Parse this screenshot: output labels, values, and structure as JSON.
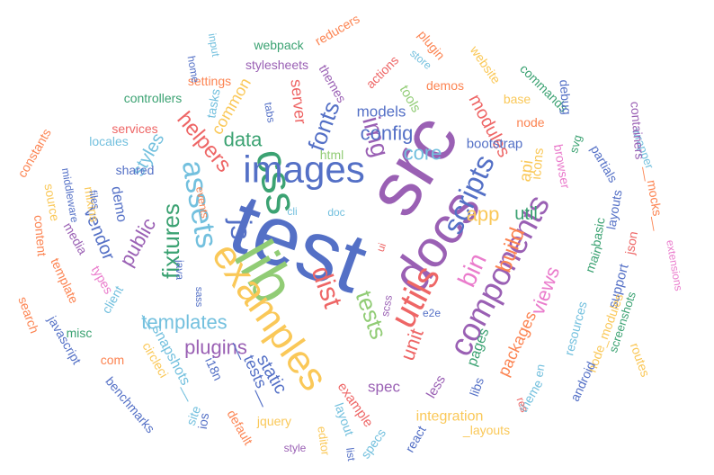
{
  "palette": [
    "#5470c6",
    "#91cc75",
    "#fac858",
    "#ee6666",
    "#73c0de",
    "#3ba272",
    "#fc8452",
    "#9a60b4",
    "#ea7ccc"
  ],
  "words": [
    {
      "text": "test",
      "color": "#5470c6"
    },
    {
      "text": "src",
      "color": "#9a60b4"
    },
    {
      "text": "lib",
      "color": "#91cc75"
    },
    {
      "text": "docs",
      "color": "#9a60b4"
    },
    {
      "text": "examples",
      "color": "#fac858"
    },
    {
      "text": "css",
      "color": "#3ba272"
    },
    {
      "text": "images",
      "color": "#5470c6"
    },
    {
      "text": "utils",
      "color": "#ee6666"
    },
    {
      "text": "components",
      "color": "#9a60b4"
    },
    {
      "text": "assets",
      "color": "#73c0de"
    },
    {
      "text": "js",
      "color": "#5470c6"
    },
    {
      "text": "scripts",
      "color": "#5470c6"
    },
    {
      "text": "dist",
      "color": "#ee6666"
    },
    {
      "text": "bin",
      "color": "#ea7ccc"
    },
    {
      "text": "img",
      "color": "#9a60b4"
    },
    {
      "text": "fixtures",
      "color": "#3ba272"
    },
    {
      "text": "templates",
      "color": "#73c0de"
    },
    {
      "text": "tests",
      "color": "#91cc75"
    },
    {
      "text": "fonts",
      "color": "#5470c6"
    },
    {
      "text": "build",
      "color": "#fc8452"
    },
    {
      "text": "helpers",
      "color": "#ee6666"
    },
    {
      "text": "app",
      "color": "#fac858"
    },
    {
      "text": "public",
      "color": "#9a60b4"
    },
    {
      "text": "plugins",
      "color": "#9a60b4"
    },
    {
      "text": "views",
      "color": "#ea7ccc"
    },
    {
      "text": "unit",
      "color": "#ee6666"
    },
    {
      "text": "config",
      "color": "#5470c6"
    },
    {
      "text": "core",
      "color": "#73c0de"
    },
    {
      "text": "data",
      "color": "#3ba272"
    },
    {
      "text": "static",
      "color": "#5470c6"
    },
    {
      "text": "vendor",
      "color": "#5470c6"
    },
    {
      "text": "util",
      "color": "#3ba272"
    },
    {
      "text": "api",
      "color": "#fac858"
    },
    {
      "text": "styles",
      "color": "#73c0de"
    },
    {
      "text": "modules",
      "color": "#ee6666"
    },
    {
      "text": "__tests__",
      "color": "#5470c6"
    },
    {
      "text": "__snapshots__",
      "color": "#73c0de"
    },
    {
      "text": "integration",
      "color": "#fac858"
    },
    {
      "text": "pages",
      "color": "#3ba272"
    },
    {
      "text": "packages",
      "color": "#fc8452"
    },
    {
      "text": "common",
      "color": "#fac858"
    },
    {
      "text": "server",
      "color": "#ee6666"
    },
    {
      "text": "models",
      "color": "#5470c6"
    },
    {
      "text": "spec",
      "color": "#9a60b4"
    },
    {
      "text": "example",
      "color": "#ee6666"
    },
    {
      "text": "icons",
      "color": "#fac858"
    },
    {
      "text": "demo",
      "color": "#5470c6"
    },
    {
      "text": "less",
      "color": "#9a60b4"
    },
    {
      "text": "support",
      "color": "#5470c6"
    },
    {
      "text": "bootstrap",
      "color": "#5470c6"
    },
    {
      "text": "tools",
      "color": "#91cc75"
    },
    {
      "text": "html",
      "color": "#91cc75"
    },
    {
      "text": "main",
      "color": "#3ba272"
    },
    {
      "text": "resources",
      "color": "#73c0de"
    },
    {
      "text": "node_modules",
      "color": "#fac858"
    },
    {
      "text": "services",
      "color": "#ee6666"
    },
    {
      "text": "themes",
      "color": "#9a60b4"
    },
    {
      "text": "client",
      "color": "#73c0de"
    },
    {
      "text": "types",
      "color": "#ea7ccc"
    },
    {
      "text": "jquery",
      "color": "#fac858"
    },
    {
      "text": "react",
      "color": "#5470c6"
    },
    {
      "text": "specs",
      "color": "#73c0de"
    },
    {
      "text": "layout",
      "color": "#73c0de"
    },
    {
      "text": "libs",
      "color": "#5470c6"
    },
    {
      "text": "en",
      "color": "#73c0de"
    },
    {
      "text": "theme",
      "color": "#73c0de"
    },
    {
      "text": "shared",
      "color": "#5470c6"
    },
    {
      "text": "browser",
      "color": "#ea7ccc"
    },
    {
      "text": "screenshots",
      "color": "#3ba272"
    },
    {
      "text": "node",
      "color": "#fc8452"
    },
    {
      "text": "commands",
      "color": "#3ba272"
    },
    {
      "text": "mixins",
      "color": "#fac858"
    },
    {
      "text": "files",
      "color": "#5470c6"
    },
    {
      "text": "middleware",
      "color": "#5470c6"
    },
    {
      "text": "source",
      "color": "#fac858"
    },
    {
      "text": "locales",
      "color": "#73c0de"
    },
    {
      "text": "controllers",
      "color": "#3ba272"
    },
    {
      "text": "settings",
      "color": "#fc8452"
    },
    {
      "text": "stylesheets",
      "color": "#9a60b4"
    },
    {
      "text": "webpack",
      "color": "#3ba272"
    },
    {
      "text": "reducers",
      "color": "#fc8452"
    },
    {
      "text": "plugin",
      "color": "#fc8452"
    },
    {
      "text": "store",
      "color": "#73c0de"
    },
    {
      "text": "website",
      "color": "#fac858"
    },
    {
      "text": "demos",
      "color": "#fc8452"
    },
    {
      "text": "actions",
      "color": "#ee6666"
    },
    {
      "text": "base",
      "color": "#fac858"
    },
    {
      "text": "tasks",
      "color": "#73c0de"
    },
    {
      "text": "home",
      "color": "#5470c6"
    },
    {
      "text": "input",
      "color": "#73c0de"
    },
    {
      "text": "tabs",
      "color": "#5470c6"
    },
    {
      "text": "events",
      "color": "#fc8452"
    },
    {
      "text": "cli",
      "color": "#73c0de"
    },
    {
      "text": "doc",
      "color": "#73c0de"
    },
    {
      "text": "java",
      "color": "#5470c6"
    },
    {
      "text": "sass",
      "color": "#5470c6"
    },
    {
      "text": "scss",
      "color": "#9a60b4"
    },
    {
      "text": "e2e",
      "color": "#5470c6"
    },
    {
      "text": "ui",
      "color": "#ee6666"
    },
    {
      "text": "misc",
      "color": "#3ba272"
    },
    {
      "text": "com",
      "color": "#fc8452"
    },
    {
      "text": "i18n",
      "color": "#5470c6"
    },
    {
      "text": "ios",
      "color": "#5470c6"
    },
    {
      "text": "circleci",
      "color": "#fac858"
    },
    {
      "text": "site",
      "color": "#73c0de"
    },
    {
      "text": "default",
      "color": "#fc8452"
    },
    {
      "text": "style",
      "color": "#9a60b4"
    },
    {
      "text": "editor",
      "color": "#fac858"
    },
    {
      "text": "list",
      "color": "#5470c6"
    },
    {
      "text": "_layouts",
      "color": "#fac858"
    },
    {
      "text": "res",
      "color": "#ee6666"
    },
    {
      "text": "android",
      "color": "#5470c6"
    },
    {
      "text": "routes",
      "color": "#fac858"
    },
    {
      "text": "extensions",
      "color": "#ea7ccc"
    },
    {
      "text": "json",
      "color": "#ee6666"
    },
    {
      "text": "__mocks__",
      "color": "#fc8452"
    },
    {
      "text": "wrapper",
      "color": "#73c0de"
    },
    {
      "text": "partials",
      "color": "#5470c6"
    },
    {
      "text": "containers",
      "color": "#9a60b4"
    },
    {
      "text": "layouts",
      "color": "#5470c6"
    },
    {
      "text": "basic",
      "color": "#3ba272"
    },
    {
      "text": "debug",
      "color": "#5470c6"
    },
    {
      "text": "svg",
      "color": "#3ba272"
    },
    {
      "text": "constants",
      "color": "#fc8452"
    },
    {
      "text": "content",
      "color": "#fc8452"
    },
    {
      "text": "search",
      "color": "#fc8452"
    },
    {
      "text": "template",
      "color": "#fc8452"
    },
    {
      "text": "media",
      "color": "#9a60b4"
    },
    {
      "text": "javascript",
      "color": "#5470c6"
    },
    {
      "text": "benchmarks",
      "color": "#5470c6"
    }
  ]
}
